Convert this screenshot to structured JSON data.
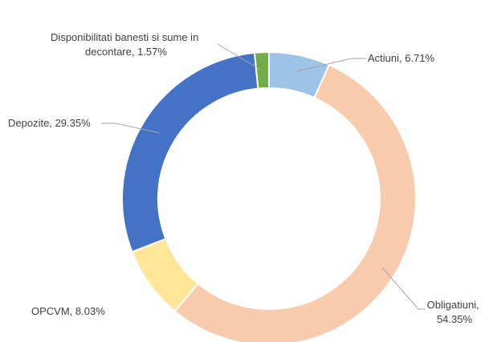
{
  "chart_data": {
    "type": "pie",
    "subtype": "doughnut",
    "title": "",
    "legend": "none",
    "slices": [
      {
        "name": "Actiuni",
        "value": 6.71,
        "color": "#9dc3e6",
        "label": [
          "Actiuni, 6.71%"
        ]
      },
      {
        "name": "Obligatiuni",
        "value": 54.35,
        "color": "#f8cbad",
        "label": [
          "Obligatiuni,",
          "54.35%"
        ]
      },
      {
        "name": "OPCVM",
        "value": 8.03,
        "color": "#ffe699",
        "label": [
          "OPCVM, 8.03%"
        ]
      },
      {
        "name": "Depozite",
        "value": 29.35,
        "color": "#4472c4",
        "label": [
          "Depozite, 29.35%"
        ]
      },
      {
        "name": "Disponibilitati banesti si sume in decontare",
        "value": 1.57,
        "color": "#70ad47",
        "label": [
          "Disponibilitati banesti si sume in",
          "decontare, 1.57%"
        ]
      }
    ]
  }
}
